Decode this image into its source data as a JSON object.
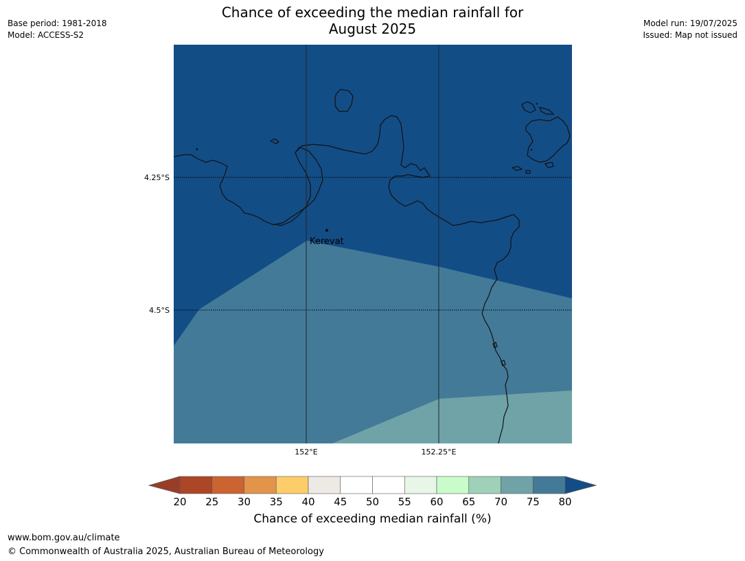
{
  "header": {
    "title_line1": "Chance of exceeding the median rainfall for",
    "title_line2": "August 2025",
    "base_period": "Base period: 1981-2018",
    "model": "Model: ACCESS-S2",
    "model_run": "Model run: 19/07/2025",
    "issued": "Issued: Map not issued"
  },
  "map": {
    "background_color": "#134d86",
    "lat_labels": [
      "4.25°S",
      "4.5°S"
    ],
    "lon_labels": [
      "152°E",
      "152.25°E"
    ],
    "place": "Kerevat",
    "zones": [
      {
        "category": "80+",
        "color": "#134d86"
      },
      {
        "category": "70-75",
        "color": "#437a98"
      },
      {
        "category": "65-70",
        "color": "#6fa3a8"
      }
    ]
  },
  "legend": {
    "title": "Chance of exceeding median rainfall (%)",
    "ticks": [
      "20",
      "25",
      "30",
      "35",
      "40",
      "45",
      "50",
      "55",
      "60",
      "65",
      "70",
      "75",
      "80"
    ],
    "colors": [
      "#ac4627",
      "#cc6431",
      "#e2944a",
      "#fdcd6a",
      "#ede9e4",
      "#ffffff",
      "#ffffff",
      "#e8f6e8",
      "#c8fcca",
      "#9fd0b8",
      "#6fa3a8",
      "#437a98"
    ],
    "under_color": "#9a3d28",
    "over_color": "#134d86"
  },
  "footer": {
    "url": "www.bom.gov.au/climate",
    "copyright": "© Commonwealth of Australia 2025, Australian Bureau of Meteorology"
  }
}
